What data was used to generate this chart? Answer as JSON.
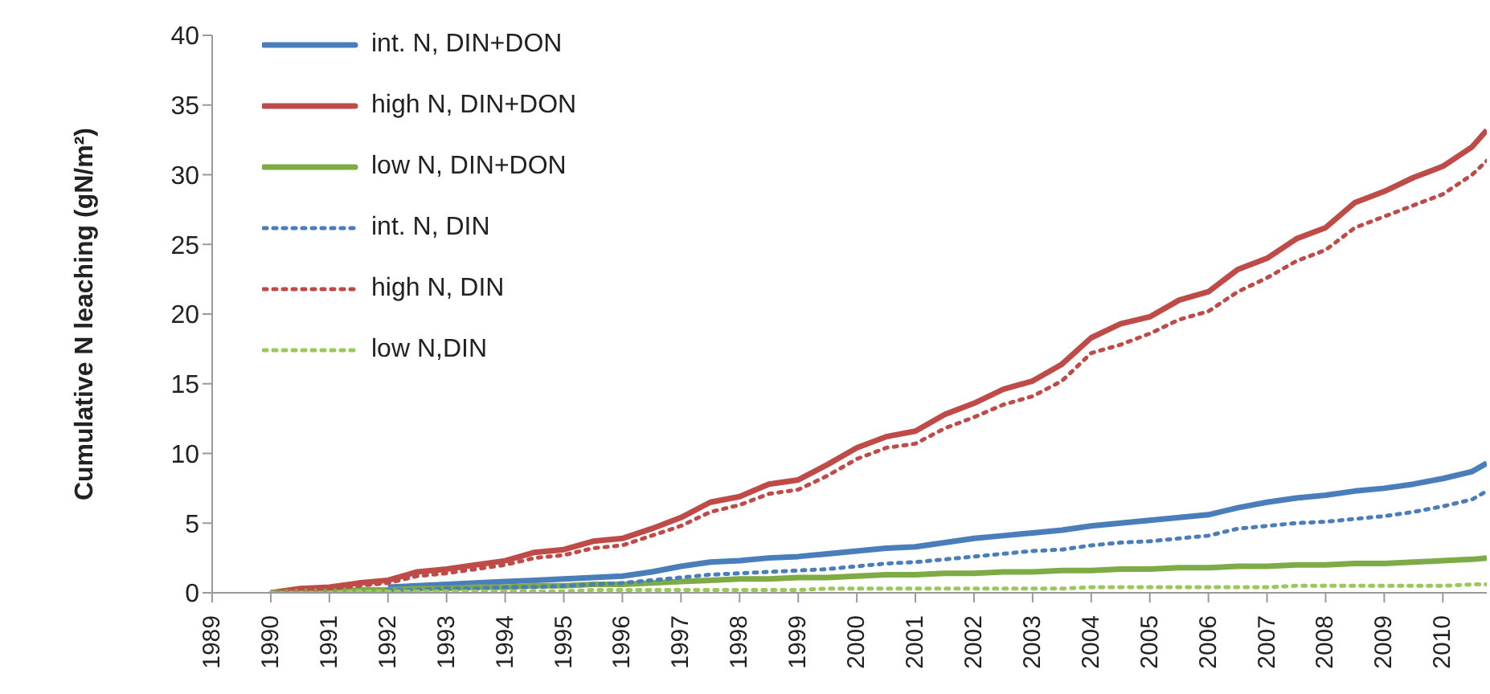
{
  "chart_data": {
    "type": "line",
    "ylabel": "Cumulative N leaching  (gN/m²)",
    "x": [
      1990,
      1990.5,
      1991,
      1991.5,
      1992,
      1992.5,
      1993,
      1993.5,
      1994,
      1994.5,
      1995,
      1995.5,
      1996,
      1996.5,
      1997,
      1997.5,
      1998,
      1998.5,
      1999,
      1999.5,
      2000,
      2000.5,
      2001,
      2001.5,
      2002,
      2002.5,
      2003,
      2003.5,
      2004,
      2004.5,
      2005,
      2005.5,
      2006,
      2006.5,
      2007,
      2007.5,
      2008,
      2008.5,
      2009,
      2009.5,
      2010,
      2010.5,
      2010.75
    ],
    "xlim": [
      1989,
      2010.75
    ],
    "xticks": [
      1989,
      1990,
      1991,
      1992,
      1993,
      1994,
      1995,
      1996,
      1997,
      1998,
      1999,
      2000,
      2001,
      2002,
      2003,
      2004,
      2005,
      2006,
      2007,
      2008,
      2009,
      2010
    ],
    "ylim": [
      0,
      40
    ],
    "yticks": [
      0,
      5,
      10,
      15,
      20,
      25,
      30,
      35,
      40
    ],
    "grid": false,
    "legend": "top left",
    "series": [
      {
        "name": "int. N, DIN+DON",
        "color": "#4a7ebb",
        "line_style": "solid",
        "values": [
          null,
          null,
          null,
          null,
          0.4,
          0.5,
          0.6,
          0.7,
          0.8,
          0.9,
          1.0,
          1.1,
          1.2,
          1.5,
          1.9,
          2.2,
          2.3,
          2.5,
          2.6,
          2.8,
          3.0,
          3.2,
          3.3,
          3.6,
          3.9,
          4.1,
          4.3,
          4.5,
          4.8,
          5.0,
          5.2,
          5.4,
          5.6,
          6.1,
          6.5,
          6.8,
          7.0,
          7.3,
          7.5,
          7.8,
          8.2,
          8.7,
          9.3
        ]
      },
      {
        "name": "high N, DIN+DON",
        "color": "#be4b48",
        "line_style": "solid",
        "values": [
          0,
          0.3,
          0.4,
          0.7,
          0.9,
          1.5,
          1.7,
          2.0,
          2.3,
          2.9,
          3.1,
          3.7,
          3.9,
          4.6,
          5.4,
          6.5,
          6.9,
          7.8,
          8.1,
          9.2,
          10.4,
          11.2,
          11.6,
          12.8,
          13.6,
          14.6,
          15.2,
          16.4,
          18.3,
          19.3,
          19.8,
          21.0,
          21.6,
          23.2,
          24.0,
          25.4,
          26.2,
          28.0,
          28.8,
          29.8,
          30.6,
          32.0,
          33.2
        ]
      },
      {
        "name": "low N, DIN+DON",
        "color": "#7fab47",
        "line_style": "solid",
        "values": [
          0,
          0.1,
          0.1,
          0.2,
          0.2,
          0.3,
          0.3,
          0.4,
          0.4,
          0.5,
          0.5,
          0.6,
          0.6,
          0.7,
          0.8,
          0.9,
          1.0,
          1.0,
          1.1,
          1.1,
          1.2,
          1.3,
          1.3,
          1.4,
          1.4,
          1.5,
          1.5,
          1.6,
          1.6,
          1.7,
          1.7,
          1.8,
          1.8,
          1.9,
          1.9,
          2.0,
          2.0,
          2.1,
          2.1,
          2.2,
          2.3,
          2.4,
          2.5
        ]
      },
      {
        "name": "int. N, DIN",
        "color": "#4a7ebb",
        "line_style": "dotted",
        "values": [
          null,
          null,
          null,
          null,
          0.2,
          0.2,
          0.3,
          0.3,
          0.4,
          0.4,
          0.5,
          0.6,
          0.7,
          0.9,
          1.1,
          1.3,
          1.4,
          1.5,
          1.6,
          1.7,
          1.9,
          2.1,
          2.2,
          2.4,
          2.6,
          2.8,
          3.0,
          3.1,
          3.4,
          3.6,
          3.7,
          3.9,
          4.1,
          4.6,
          4.8,
          5.0,
          5.1,
          5.3,
          5.5,
          5.8,
          6.2,
          6.7,
          7.3
        ]
      },
      {
        "name": "high N, DIN",
        "color": "#be4b48",
        "line_style": "dotted",
        "values": [
          0,
          0.2,
          0.3,
          0.5,
          0.7,
          1.2,
          1.4,
          1.7,
          2.0,
          2.5,
          2.7,
          3.2,
          3.4,
          4.1,
          4.8,
          5.8,
          6.3,
          7.1,
          7.4,
          8.4,
          9.6,
          10.4,
          10.7,
          11.8,
          12.6,
          13.5,
          14.1,
          15.2,
          17.2,
          17.8,
          18.6,
          19.6,
          20.2,
          21.6,
          22.6,
          23.8,
          24.6,
          26.2,
          27.0,
          27.8,
          28.6,
          30.0,
          31.0
        ]
      },
      {
        "name": "low N,DIN",
        "color": "#9bc85a",
        "line_style": "dotted",
        "values": [
          0,
          0,
          0,
          0.1,
          0.1,
          0.1,
          0.1,
          0.1,
          0.1,
          0.1,
          0.1,
          0.2,
          0.2,
          0.2,
          0.2,
          0.2,
          0.2,
          0.2,
          0.2,
          0.3,
          0.3,
          0.3,
          0.3,
          0.3,
          0.3,
          0.3,
          0.3,
          0.3,
          0.4,
          0.4,
          0.4,
          0.4,
          0.4,
          0.4,
          0.4,
          0.5,
          0.5,
          0.5,
          0.5,
          0.5,
          0.5,
          0.6,
          0.6
        ]
      }
    ]
  }
}
